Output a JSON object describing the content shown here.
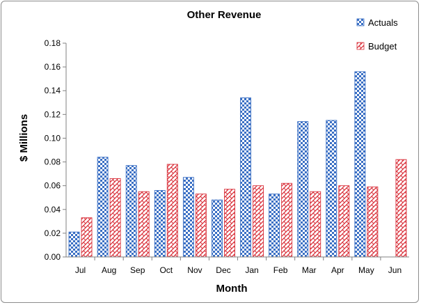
{
  "chart_data": {
    "type": "bar",
    "title": "Other Revenue",
    "xlabel": "Month",
    "ylabel": "$ Millions",
    "categories": [
      "Jul",
      "Aug",
      "Sep",
      "Oct",
      "Nov",
      "Dec",
      "Jan",
      "Feb",
      "Mar",
      "Apr",
      "May",
      "Jun"
    ],
    "series": [
      {
        "name": "Actuals",
        "values": [
          0.021,
          0.084,
          0.077,
          0.056,
          0.067,
          0.048,
          0.134,
          0.053,
          0.114,
          0.115,
          0.156,
          null
        ],
        "color": "#3a6fc4",
        "pattern": "checker"
      },
      {
        "name": "Budget",
        "values": [
          0.033,
          0.066,
          0.055,
          0.078,
          0.053,
          0.057,
          0.06,
          0.062,
          0.055,
          0.06,
          0.059,
          0.082
        ],
        "color": "#d9303a",
        "pattern": "weave"
      }
    ],
    "ylim": [
      0,
      0.18
    ],
    "yticks": [
      "0.00",
      "0.02",
      "0.04",
      "0.06",
      "0.08",
      "0.10",
      "0.12",
      "0.14",
      "0.16",
      "0.18"
    ],
    "grid": false,
    "legend": "top-right"
  }
}
